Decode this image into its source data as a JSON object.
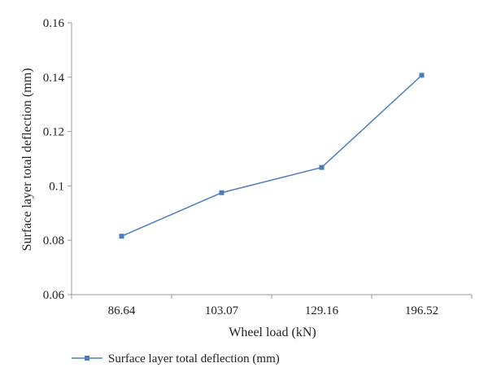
{
  "chart_data": {
    "type": "line",
    "categories": [
      "86.64",
      "103.07",
      "129.16",
      "196.52"
    ],
    "series": [
      {
        "name": "Surface layer total deflection (mm)",
        "values": [
          0.0815,
          0.0975,
          0.1068,
          0.1407
        ],
        "color": "#4a7ebb",
        "marker": "square"
      }
    ],
    "xlabel": "Wheel load (kN)",
    "ylabel": "Surface layer total deflection (mm)",
    "ylim": [
      0.06,
      0.16
    ],
    "yticks": [
      "0.06",
      "0.08",
      "0.1",
      "0.12",
      "0.14",
      "0.16"
    ],
    "grid": false,
    "legend_position": "bottom"
  }
}
